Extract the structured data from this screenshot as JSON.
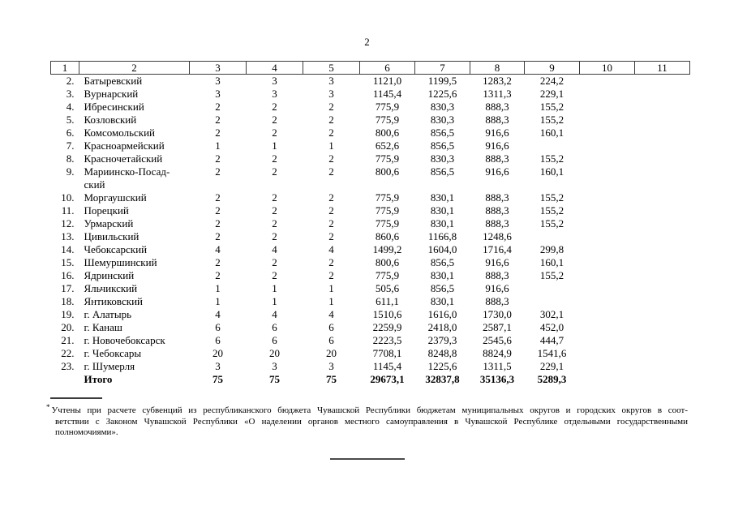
{
  "page": {
    "number": "2"
  },
  "table": {
    "header": [
      "1",
      "2",
      "3",
      "4",
      "5",
      "6",
      "7",
      "8",
      "9",
      "10",
      "11"
    ],
    "rows": [
      [
        "2.",
        "Батыревский",
        "3",
        "3",
        "3",
        "1121,0",
        "1199,5",
        "1283,2",
        "224,2",
        "",
        ""
      ],
      [
        "3.",
        "Вурнарский",
        "3",
        "3",
        "3",
        "1145,4",
        "1225,6",
        "1311,3",
        "229,1",
        "",
        ""
      ],
      [
        "4.",
        "Ибресинский",
        "2",
        "2",
        "2",
        "775,9",
        "830,3",
        "888,3",
        "155,2",
        "",
        ""
      ],
      [
        "5.",
        "Козловский",
        "2",
        "2",
        "2",
        "775,9",
        "830,3",
        "888,3",
        "155,2",
        "",
        ""
      ],
      [
        "6.",
        "Комсомольский",
        "2",
        "2",
        "2",
        "800,6",
        "856,5",
        "916,6",
        "160,1",
        "",
        ""
      ],
      [
        "7.",
        "Красноармейский",
        "1",
        "1",
        "1",
        "652,6",
        "856,5",
        "916,6",
        "",
        "",
        ""
      ],
      [
        "8.",
        "Красночетайский",
        "2",
        "2",
        "2",
        "775,9",
        "830,3",
        "888,3",
        "155,2",
        "",
        ""
      ],
      [
        "9.",
        "Мариинско-Посад-\nский",
        "2",
        "2",
        "2",
        "800,6",
        "856,5",
        "916,6",
        "160,1",
        "",
        ""
      ],
      [
        "10.",
        "Моргаушский",
        "2",
        "2",
        "2",
        "775,9",
        "830,1",
        "888,3",
        "155,2",
        "",
        ""
      ],
      [
        "11.",
        "Порецкий",
        "2",
        "2",
        "2",
        "775,9",
        "830,1",
        "888,3",
        "155,2",
        "",
        ""
      ],
      [
        "12.",
        "Урмарский",
        "2",
        "2",
        "2",
        "775,9",
        "830,1",
        "888,3",
        "155,2",
        "",
        ""
      ],
      [
        "13.",
        "Цивильский",
        "2",
        "2",
        "2",
        "860,6",
        "1166,8",
        "1248,6",
        "",
        "",
        ""
      ],
      [
        "14.",
        "Чебоксарский",
        "4",
        "4",
        "4",
        "1499,2",
        "1604,0",
        "1716,4",
        "299,8",
        "",
        ""
      ],
      [
        "15.",
        "Шемуршинский",
        "2",
        "2",
        "2",
        "800,6",
        "856,5",
        "916,6",
        "160,1",
        "",
        ""
      ],
      [
        "16.",
        "Ядринский",
        "2",
        "2",
        "2",
        "775,9",
        "830,1",
        "888,3",
        "155,2",
        "",
        ""
      ],
      [
        "17.",
        "Яльчикский",
        "1",
        "1",
        "1",
        "505,6",
        "856,5",
        "916,6",
        "",
        "",
        ""
      ],
      [
        "18.",
        "Янтиковский",
        "1",
        "1",
        "1",
        "611,1",
        "830,1",
        "888,3",
        "",
        "",
        ""
      ],
      [
        "19.",
        "г. Алатырь",
        "4",
        "4",
        "4",
        "1510,6",
        "1616,0",
        "1730,0",
        "302,1",
        "",
        ""
      ],
      [
        "20.",
        "г. Канаш",
        "6",
        "6",
        "6",
        "2259,9",
        "2418,0",
        "2587,1",
        "452,0",
        "",
        ""
      ],
      [
        "21.",
        "г. Новочебоксарск",
        "6",
        "6",
        "6",
        "2223,5",
        "2379,3",
        "2545,6",
        "444,7",
        "",
        ""
      ],
      [
        "22.",
        "г. Чебоксары",
        "20",
        "20",
        "20",
        "7708,1",
        "8248,8",
        "8824,9",
        "1541,6",
        "",
        ""
      ],
      [
        "23.",
        "г. Шумерля",
        "3",
        "3",
        "3",
        "1145,4",
        "1225,6",
        "1311,5",
        "229,1",
        "",
        ""
      ]
    ],
    "total_row": [
      "",
      "Итого",
      "75",
      "75",
      "75",
      "29673,1",
      "32837,8",
      "35136,3",
      "5289,3",
      "",
      ""
    ]
  },
  "footnote": {
    "marker": "*",
    "lines": [
      "Учтены при расчете субвенций из республиканского бюджета Чувашской Республики бюджетам муниципальных округов и городских округов в соот-",
      "ветствии с Законом Чувашской Республики «О наделении органов местного самоуправления в Чувашской Республике отдельными государственными",
      "полномочиями»."
    ]
  }
}
